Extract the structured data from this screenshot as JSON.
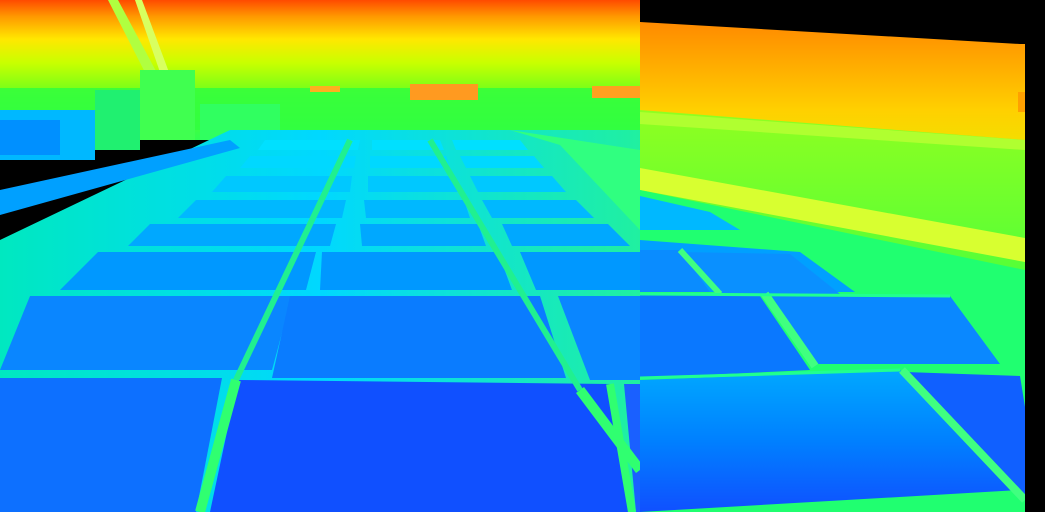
{
  "panels": [
    {
      "name": "thermal-view-left",
      "palette": [
        "#ff3a00",
        "#ff9a00",
        "#ffe800",
        "#b8ff00",
        "#2fff40",
        "#00ffb4",
        "#00d8ff",
        "#008cff",
        "#1040ff"
      ]
    },
    {
      "name": "thermal-view-right",
      "palette": [
        "#ff6a00",
        "#ffd000",
        "#d8ff00",
        "#70ff10",
        "#20ff60",
        "#00f0d0",
        "#00b8ff",
        "#0070ff",
        "#1040ff"
      ]
    }
  ],
  "colors": {
    "background": "#000000",
    "panel_seam": "#2fff60",
    "hot": "#ff3a00",
    "cold": "#1040ff"
  }
}
